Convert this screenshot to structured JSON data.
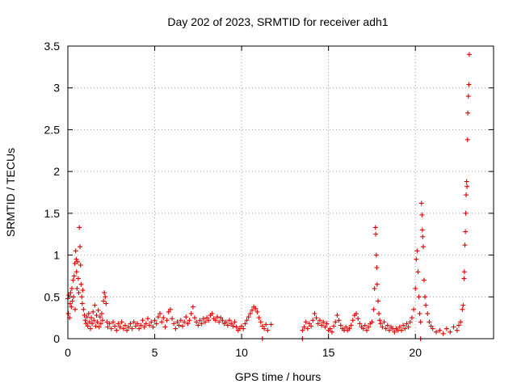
{
  "chart_data": {
    "type": "scatter",
    "title": "Day 202 of 2023, SRMTID for receiver adh1",
    "xlabel": "GPS time / hours",
    "ylabel": "SRMTID / TECUs",
    "xlim": [
      0,
      24.5
    ],
    "ylim": [
      0,
      3.5
    ],
    "grid": true,
    "marker": "+",
    "series_color": "#e00000",
    "x_ticks": [
      0,
      5,
      10,
      15,
      20
    ],
    "x_tick_labels": [
      "0",
      "5",
      "10",
      "15",
      "20"
    ],
    "y_ticks": [
      0,
      0.5,
      1,
      1.5,
      2,
      2.5,
      3,
      3.5
    ],
    "y_tick_labels": [
      "0",
      "0.5",
      "1",
      "1.5",
      "2",
      "2.5",
      "3",
      "3.5"
    ],
    "series": [
      {
        "name": "SRMTID",
        "points": [
          [
            0.0,
            0.48
          ],
          [
            0.03,
            0.3
          ],
          [
            0.06,
            0.52
          ],
          [
            0.1,
            0.25
          ],
          [
            0.13,
            0.42
          ],
          [
            0.16,
            0.55
          ],
          [
            0.2,
            0.38
          ],
          [
            0.23,
            0.6
          ],
          [
            0.26,
            0.45
          ],
          [
            0.3,
            0.7
          ],
          [
            0.33,
            0.5
          ],
          [
            0.36,
            0.75
          ],
          [
            0.4,
            0.9
          ],
          [
            0.42,
            0.35
          ],
          [
            0.45,
            1.05
          ],
          [
            0.48,
            0.95
          ],
          [
            0.5,
            0.8
          ],
          [
            0.53,
            0.6
          ],
          [
            0.56,
            0.92
          ],
          [
            0.6,
            0.72
          ],
          [
            0.63,
            0.55
          ],
          [
            0.66,
            1.33
          ],
          [
            0.7,
            1.1
          ],
          [
            0.73,
            0.88
          ],
          [
            0.76,
            0.65
          ],
          [
            0.8,
            0.5
          ],
          [
            0.83,
            0.42
          ],
          [
            0.86,
            0.58
          ],
          [
            0.9,
            0.35
          ],
          [
            0.95,
            0.28
          ],
          [
            1.0,
            0.22
          ],
          [
            1.05,
            0.18
          ],
          [
            1.1,
            0.26
          ],
          [
            1.15,
            0.15
          ],
          [
            1.2,
            0.3
          ],
          [
            1.25,
            0.2
          ],
          [
            1.3,
            0.12
          ],
          [
            1.35,
            0.25
          ],
          [
            1.4,
            0.18
          ],
          [
            1.45,
            0.32
          ],
          [
            1.5,
            0.22
          ],
          [
            1.55,
            0.4
          ],
          [
            1.6,
            0.15
          ],
          [
            1.65,
            0.28
          ],
          [
            1.7,
            0.2
          ],
          [
            1.75,
            0.34
          ],
          [
            1.8,
            0.14
          ],
          [
            1.85,
            0.26
          ],
          [
            1.9,
            0.18
          ],
          [
            1.95,
            0.3
          ],
          [
            2.0,
            0.22
          ],
          [
            2.05,
            0.45
          ],
          [
            2.1,
            0.55
          ],
          [
            2.15,
            0.5
          ],
          [
            2.2,
            0.42
          ],
          [
            2.25,
            0.2
          ],
          [
            2.3,
            0.14
          ],
          [
            2.4,
            0.18
          ],
          [
            2.5,
            0.12
          ],
          [
            2.6,
            0.2
          ],
          [
            2.7,
            0.15
          ],
          [
            2.8,
            0.1
          ],
          [
            2.9,
            0.18
          ],
          [
            3.0,
            0.14
          ],
          [
            3.1,
            0.2
          ],
          [
            3.2,
            0.12
          ],
          [
            3.3,
            0.16
          ],
          [
            3.4,
            0.1
          ],
          [
            3.5,
            0.14
          ],
          [
            3.6,
            0.18
          ],
          [
            3.7,
            0.12
          ],
          [
            3.8,
            0.2
          ],
          [
            3.9,
            0.15
          ],
          [
            4.0,
            0.18
          ],
          [
            4.1,
            0.12
          ],
          [
            4.2,
            0.16
          ],
          [
            4.3,
            0.22
          ],
          [
            4.4,
            0.14
          ],
          [
            4.5,
            0.18
          ],
          [
            4.6,
            0.24
          ],
          [
            4.7,
            0.16
          ],
          [
            4.8,
            0.2
          ],
          [
            4.9,
            0.14
          ],
          [
            5.0,
            0.22
          ],
          [
            5.1,
            0.18
          ],
          [
            5.2,
            0.26
          ],
          [
            5.3,
            0.3
          ],
          [
            5.4,
            0.2
          ],
          [
            5.5,
            0.25
          ],
          [
            5.6,
            0.14
          ],
          [
            5.7,
            0.22
          ],
          [
            5.8,
            0.32
          ],
          [
            5.9,
            0.35
          ],
          [
            6.0,
            0.24
          ],
          [
            6.1,
            0.18
          ],
          [
            6.2,
            0.12
          ],
          [
            6.3,
            0.2
          ],
          [
            6.4,
            0.16
          ],
          [
            6.5,
            0.22
          ],
          [
            6.6,
            0.15
          ],
          [
            6.7,
            0.2
          ],
          [
            6.8,
            0.26
          ],
          [
            6.9,
            0.18
          ],
          [
            7.0,
            0.22
          ],
          [
            7.1,
            0.3
          ],
          [
            7.2,
            0.38
          ],
          [
            7.3,
            0.25
          ],
          [
            7.4,
            0.2
          ],
          [
            7.5,
            0.16
          ],
          [
            7.6,
            0.22
          ],
          [
            7.7,
            0.18
          ],
          [
            7.8,
            0.24
          ],
          [
            7.9,
            0.2
          ],
          [
            8.0,
            0.25
          ],
          [
            8.1,
            0.22
          ],
          [
            8.2,
            0.28
          ],
          [
            8.3,
            0.3
          ],
          [
            8.4,
            0.24
          ],
          [
            8.5,
            0.22
          ],
          [
            8.6,
            0.26
          ],
          [
            8.7,
            0.2
          ],
          [
            8.8,
            0.25
          ],
          [
            8.9,
            0.22
          ],
          [
            9.0,
            0.18
          ],
          [
            9.1,
            0.2
          ],
          [
            9.2,
            0.16
          ],
          [
            9.3,
            0.22
          ],
          [
            9.4,
            0.18
          ],
          [
            9.5,
            0.15
          ],
          [
            9.6,
            0.2
          ],
          [
            9.7,
            0.14
          ],
          [
            9.8,
            0.1
          ],
          [
            9.9,
            0.12
          ],
          [
            10.0,
            0.15
          ],
          [
            10.1,
            0.12
          ],
          [
            10.2,
            0.18
          ],
          [
            10.3,
            0.22
          ],
          [
            10.4,
            0.26
          ],
          [
            10.5,
            0.3
          ],
          [
            10.6,
            0.34
          ],
          [
            10.7,
            0.38
          ],
          [
            10.8,
            0.36
          ],
          [
            10.9,
            0.32
          ],
          [
            11.0,
            0.25
          ],
          [
            11.1,
            0.2
          ],
          [
            11.2,
            0.15
          ],
          [
            11.3,
            0.12
          ],
          [
            11.4,
            0.17
          ],
          [
            11.5,
            0.1
          ],
          [
            11.2,
            0.0
          ],
          [
            13.5,
            0.0
          ],
          [
            13.5,
            0.1
          ],
          [
            13.6,
            0.14
          ],
          [
            13.7,
            0.2
          ],
          [
            13.8,
            0.12
          ],
          [
            13.9,
            0.18
          ],
          [
            14.0,
            0.15
          ],
          [
            14.1,
            0.22
          ],
          [
            14.2,
            0.3
          ],
          [
            14.3,
            0.25
          ],
          [
            14.4,
            0.18
          ],
          [
            14.5,
            0.22
          ],
          [
            14.6,
            0.16
          ],
          [
            14.7,
            0.2
          ],
          [
            14.8,
            0.14
          ],
          [
            14.9,
            0.18
          ],
          [
            15.0,
            0.1
          ],
          [
            15.1,
            0.12
          ],
          [
            15.2,
            0.08
          ],
          [
            15.3,
            0.15
          ],
          [
            15.4,
            0.2
          ],
          [
            15.5,
            0.28
          ],
          [
            15.6,
            0.22
          ],
          [
            15.7,
            0.16
          ],
          [
            15.8,
            0.12
          ],
          [
            15.9,
            0.1
          ],
          [
            16.0,
            0.14
          ],
          [
            16.1,
            0.1
          ],
          [
            16.2,
            0.12
          ],
          [
            16.3,
            0.16
          ],
          [
            16.4,
            0.22
          ],
          [
            16.5,
            0.28
          ],
          [
            16.6,
            0.3
          ],
          [
            16.7,
            0.24
          ],
          [
            16.8,
            0.18
          ],
          [
            16.9,
            0.14
          ],
          [
            17.0,
            0.12
          ],
          [
            17.1,
            0.16
          ],
          [
            17.2,
            0.1
          ],
          [
            17.3,
            0.14
          ],
          [
            17.4,
            0.18
          ],
          [
            17.5,
            0.2
          ],
          [
            17.6,
            0.35
          ],
          [
            17.65,
            0.6
          ],
          [
            17.7,
            1.33
          ],
          [
            17.72,
            1.25
          ],
          [
            17.75,
            1.0
          ],
          [
            17.78,
            0.85
          ],
          [
            17.8,
            0.65
          ],
          [
            17.85,
            0.45
          ],
          [
            17.9,
            0.3
          ],
          [
            17.95,
            0.22
          ],
          [
            18.0,
            0.18
          ],
          [
            18.1,
            0.14
          ],
          [
            18.2,
            0.2
          ],
          [
            18.3,
            0.12
          ],
          [
            18.4,
            0.16
          ],
          [
            18.5,
            0.1
          ],
          [
            18.6,
            0.14
          ],
          [
            18.7,
            0.12
          ],
          [
            18.8,
            0.08
          ],
          [
            18.9,
            0.12
          ],
          [
            19.0,
            0.1
          ],
          [
            19.1,
            0.14
          ],
          [
            19.2,
            0.1
          ],
          [
            19.3,
            0.16
          ],
          [
            19.4,
            0.12
          ],
          [
            19.5,
            0.18
          ],
          [
            19.6,
            0.14
          ],
          [
            19.7,
            0.2
          ],
          [
            19.8,
            0.25
          ],
          [
            19.9,
            0.35
          ],
          [
            20.0,
            0.6
          ],
          [
            20.05,
            0.95
          ],
          [
            20.1,
            1.05
          ],
          [
            20.15,
            0.8
          ],
          [
            20.2,
            0.5
          ],
          [
            20.25,
            0.3
          ],
          [
            20.3,
            0.2
          ],
          [
            20.35,
            1.62
          ],
          [
            20.38,
            1.48
          ],
          [
            20.4,
            1.3
          ],
          [
            20.42,
            1.22
          ],
          [
            20.45,
            1.1
          ],
          [
            20.5,
            0.7
          ],
          [
            20.55,
            0.5
          ],
          [
            20.6,
            0.4
          ],
          [
            20.7,
            0.3
          ],
          [
            20.8,
            0.2
          ],
          [
            20.9,
            0.15
          ],
          [
            21.0,
            0.12
          ],
          [
            21.2,
            0.08
          ],
          [
            21.4,
            0.1
          ],
          [
            21.6,
            0.06
          ],
          [
            21.8,
            0.12
          ],
          [
            22.0,
            0.08
          ],
          [
            22.2,
            0.14
          ],
          [
            22.4,
            0.1
          ],
          [
            22.5,
            0.16
          ],
          [
            22.6,
            0.2
          ],
          [
            22.7,
            0.35
          ],
          [
            22.75,
            0.4
          ],
          [
            22.8,
            0.72
          ],
          [
            22.82,
            0.8
          ],
          [
            22.85,
            1.12
          ],
          [
            22.88,
            1.28
          ],
          [
            22.9,
            1.5
          ],
          [
            22.92,
            1.72
          ],
          [
            22.95,
            1.88
          ],
          [
            22.97,
            1.82
          ],
          [
            23.0,
            2.38
          ],
          [
            23.02,
            2.7
          ],
          [
            23.05,
            2.9
          ],
          [
            23.08,
            3.04
          ],
          [
            23.1,
            3.4
          ],
          [
            20.3,
            0.0
          ],
          [
            11.7,
            0.17
          ]
        ]
      }
    ]
  }
}
